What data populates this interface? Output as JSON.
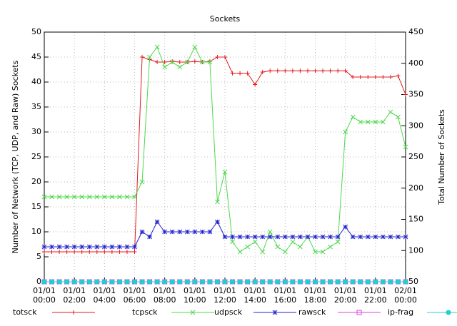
{
  "chart_data": {
    "type": "line",
    "title": "Sockets",
    "ylabel": "Number of Network (TCP, UDP, and Raw) Sockets",
    "y2label": "Total Number of Sockets",
    "x": [
      "01/01 00:00",
      "01/01 00:30",
      "01/01 01:00",
      "01/01 01:30",
      "01/01 02:00",
      "01/01 02:30",
      "01/01 03:00",
      "01/01 03:30",
      "01/01 04:00",
      "01/01 04:30",
      "01/01 05:00",
      "01/01 05:30",
      "01/01 06:00",
      "01/01 06:30",
      "01/01 07:00",
      "01/01 07:30",
      "01/01 08:00",
      "01/01 08:30",
      "01/01 09:00",
      "01/01 09:30",
      "01/01 10:00",
      "01/01 10:30",
      "01/01 11:00",
      "01/01 11:30",
      "01/01 12:00",
      "01/01 12:30",
      "01/01 13:00",
      "01/01 13:30",
      "01/01 14:00",
      "01/01 14:30",
      "01/01 15:00",
      "01/01 15:30",
      "01/01 16:00",
      "01/01 16:30",
      "01/01 17:00",
      "01/01 17:30",
      "01/01 18:00",
      "01/01 18:30",
      "01/01 19:00",
      "01/01 19:30",
      "01/01 20:00",
      "01/01 20:30",
      "01/01 21:00",
      "01/01 21:30",
      "01/01 22:00",
      "01/01 22:30",
      "01/01 23:00",
      "01/01 23:30",
      "02/01 00:00"
    ],
    "series": [
      {
        "name": "totsck",
        "color": "#e41a1c",
        "marker": "plus",
        "axis": "y2",
        "values": [
          98,
          98,
          98,
          98,
          98,
          98,
          98,
          98,
          98,
          98,
          98,
          98,
          98,
          410,
          406,
          402,
          402,
          403,
          402,
          402,
          403,
          402,
          403,
          410,
          410,
          384,
          384,
          384,
          366,
          386,
          388,
          388,
          388,
          388,
          388,
          388,
          388,
          388,
          388,
          388,
          388,
          378,
          378,
          378,
          378,
          378,
          378,
          380,
          350
        ]
      },
      {
        "name": "tcpsck",
        "color": "#4dd84d",
        "marker": "cross",
        "values": [
          17,
          17,
          17,
          17,
          17,
          17,
          17,
          17,
          17,
          17,
          17,
          17,
          17,
          20,
          45,
          47,
          43,
          44,
          43,
          44,
          47,
          44,
          44,
          16,
          22,
          8,
          6,
          7,
          8,
          6,
          10,
          7,
          6,
          8,
          7,
          9,
          6,
          6,
          7,
          8,
          30,
          33,
          32,
          32,
          32,
          32,
          34,
          33,
          27
        ]
      },
      {
        "name": "udpsck",
        "color": "#2222cc",
        "marker": "star",
        "values": [
          7,
          7,
          7,
          7,
          7,
          7,
          7,
          7,
          7,
          7,
          7,
          7,
          7,
          10,
          9,
          12,
          10,
          10,
          10,
          10,
          10,
          10,
          10,
          12,
          9,
          9,
          9,
          9,
          9,
          9,
          9,
          9,
          9,
          9,
          9,
          9,
          9,
          9,
          9,
          9,
          11,
          9,
          9,
          9,
          9,
          9,
          9,
          9,
          9
        ]
      },
      {
        "name": "rawsck",
        "color": "#e040e0",
        "marker": "square",
        "values": [
          0,
          0,
          0,
          0,
          0,
          0,
          0,
          0,
          0,
          0,
          0,
          0,
          0,
          0,
          0,
          0,
          0,
          0,
          0,
          0,
          0,
          0,
          0,
          0,
          0,
          0,
          0,
          0,
          0,
          0,
          0,
          0,
          0,
          0,
          0,
          0,
          0,
          0,
          0,
          0,
          0,
          0,
          0,
          0,
          0,
          0,
          0,
          0,
          0
        ]
      },
      {
        "name": "ip-frag",
        "color": "#20d0d0",
        "marker": "circle",
        "values": [
          0,
          0,
          0,
          0,
          0,
          0,
          0,
          0,
          0,
          0,
          0,
          0,
          0,
          0,
          0,
          0,
          0,
          0,
          0,
          0,
          0,
          0,
          0,
          0,
          0,
          0,
          0,
          0,
          0,
          0,
          0,
          0,
          0,
          0,
          0,
          0,
          0,
          0,
          0,
          0,
          0,
          0,
          0,
          0,
          0,
          0,
          0,
          0,
          0
        ]
      }
    ],
    "xlim": [
      "01/01 00:00",
      "02/01 00:00"
    ],
    "xticks": [
      "01/01 00:00",
      "01/01 02:00",
      "01/01 04:00",
      "01/01 06:00",
      "01/01 08:00",
      "01/01 10:00",
      "01/01 12:00",
      "01/01 14:00",
      "01/01 16:00",
      "01/01 18:00",
      "01/01 20:00",
      "01/01 22:00",
      "02/01 00:00"
    ],
    "ylim": [
      0,
      50
    ],
    "yticks": [
      0,
      5,
      10,
      15,
      20,
      25,
      30,
      35,
      40,
      45,
      50
    ],
    "y2lim": [
      50,
      450
    ],
    "y2ticks": [
      50,
      100,
      150,
      200,
      250,
      300,
      350,
      400,
      450
    ],
    "grid": true,
    "legend": "bottom"
  }
}
